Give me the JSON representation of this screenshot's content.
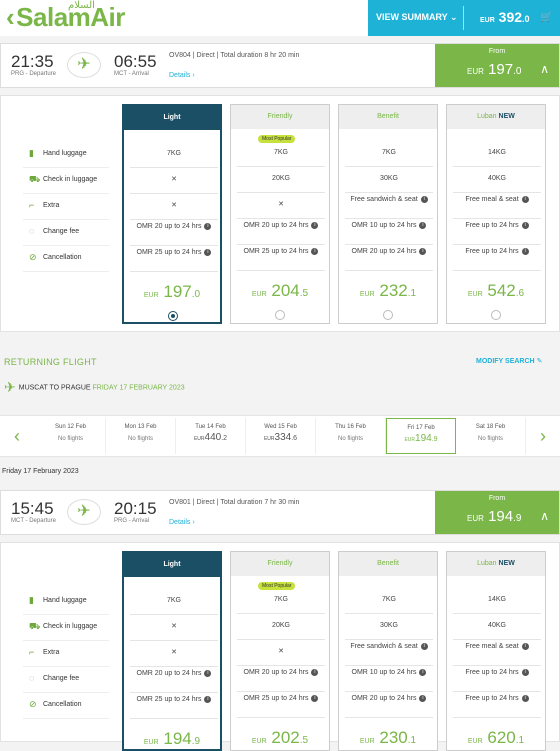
{
  "header": {
    "logo_text": "SalamAir",
    "logo_arabic": "السلام",
    "view_summary": "VIEW SUMMARY",
    "total_currency": "EUR",
    "total_int": "392",
    "total_dec": ".0"
  },
  "outbound": {
    "depart_time": "21:35",
    "depart_label": "PRG - Departure",
    "arrive_time": "06:55",
    "arrive_label": "MCT - Arrival",
    "info": "OV804 | Direct | Total duration 8 hr 20 min",
    "details": "Details ›",
    "from_label": "From",
    "from_currency": "EUR",
    "from_int": "197",
    "from_dec": ".0",
    "features": [
      "Hand luggage",
      "Check in luggage",
      "Extra",
      "Change fee",
      "Cancellation"
    ],
    "fares": [
      {
        "name": "Light",
        "badge": "",
        "cells": [
          "7KG",
          "✕",
          "✕",
          "OMR 20 up to 24 hrs",
          "OMR 25 up to 24 hrs"
        ],
        "currency": "EUR",
        "int": "197",
        "dec": ".0"
      },
      {
        "name": "Friendly",
        "badge": "Most Popular",
        "cells": [
          "7KG",
          "20KG",
          "✕",
          "OMR 20 up to 24 hrs",
          "OMR 25 up to 24 hrs"
        ],
        "currency": "EUR",
        "int": "204",
        "dec": ".5"
      },
      {
        "name": "Benefit",
        "badge": "",
        "cells": [
          "7KG",
          "30KG",
          "Free sandwich & seat",
          "OMR 10 up to 24 hrs",
          "OMR 20 up to 24 hrs"
        ],
        "currency": "EUR",
        "int": "232",
        "dec": ".1"
      },
      {
        "name": "Luban",
        "new": "NEW",
        "badge": "",
        "cells": [
          "14KG",
          "40KG",
          "Free meal & seat",
          "Free up to 24 hrs",
          "Free up to 24 hrs"
        ],
        "currency": "EUR",
        "int": "542",
        "dec": ".6"
      }
    ]
  },
  "returning": {
    "title": "RETURNING FLIGHT",
    "modify": "MODIFY SEARCH",
    "route": "MUSCAT TO PRAGUE",
    "route_date": "FRIDAY 17 FEBRUARY 2023",
    "dates": [
      {
        "label": "Sun 12 Feb",
        "text": "No flights"
      },
      {
        "label": "Mon 13 Feb",
        "text": "No flights"
      },
      {
        "label": "Tue 14 Feb",
        "currency": "EUR",
        "int": "440",
        "dec": ".2"
      },
      {
        "label": "Wed 15 Feb",
        "currency": "EUR",
        "int": "334",
        "dec": ".6"
      },
      {
        "label": "Thu 16 Feb",
        "text": "No flights"
      },
      {
        "label": "Fri 17 Feb",
        "currency": "EUR",
        "int": "194",
        "dec": ".9"
      },
      {
        "label": "Sat 18 Feb",
        "text": "No flights"
      }
    ],
    "selected_date": "Friday 17 February 2023",
    "depart_time": "15:45",
    "depart_label": "MCT - Departure",
    "arrive_time": "20:15",
    "arrive_label": "PRG - Arrival",
    "info": "OV801 | Direct | Total duration 7 hr 30 min",
    "details": "Details ›",
    "from_label": "From",
    "from_currency": "EUR",
    "from_int": "194",
    "from_dec": ".9",
    "features": [
      "Hand luggage",
      "Check in luggage",
      "Extra",
      "Change fee",
      "Cancellation"
    ],
    "fares": [
      {
        "name": "Light",
        "badge": "",
        "cells": [
          "7KG",
          "✕",
          "✕",
          "OMR 20 up to 24 hrs",
          "OMR 25 up to 24 hrs"
        ],
        "currency": "EUR",
        "int": "194",
        "dec": ".9"
      },
      {
        "name": "Friendly",
        "badge": "Most Popular",
        "cells": [
          "7KG",
          "20KG",
          "✕",
          "OMR 20 up to 24 hrs",
          "OMR 25 up to 24 hrs"
        ],
        "currency": "EUR",
        "int": "202",
        "dec": ".5"
      },
      {
        "name": "Benefit",
        "badge": "",
        "cells": [
          "7KG",
          "30KG",
          "Free sandwich & seat",
          "OMR 10 up to 24 hrs",
          "OMR 20 up to 24 hrs"
        ],
        "currency": "EUR",
        "int": "230",
        "dec": ".1"
      },
      {
        "name": "Luban",
        "new": "NEW",
        "badge": "",
        "cells": [
          "14KG",
          "40KG",
          "Free meal & seat",
          "Free up to 24 hrs",
          "Free up to 24 hrs"
        ],
        "currency": "EUR",
        "int": "620",
        "dec": ".1"
      }
    ]
  }
}
